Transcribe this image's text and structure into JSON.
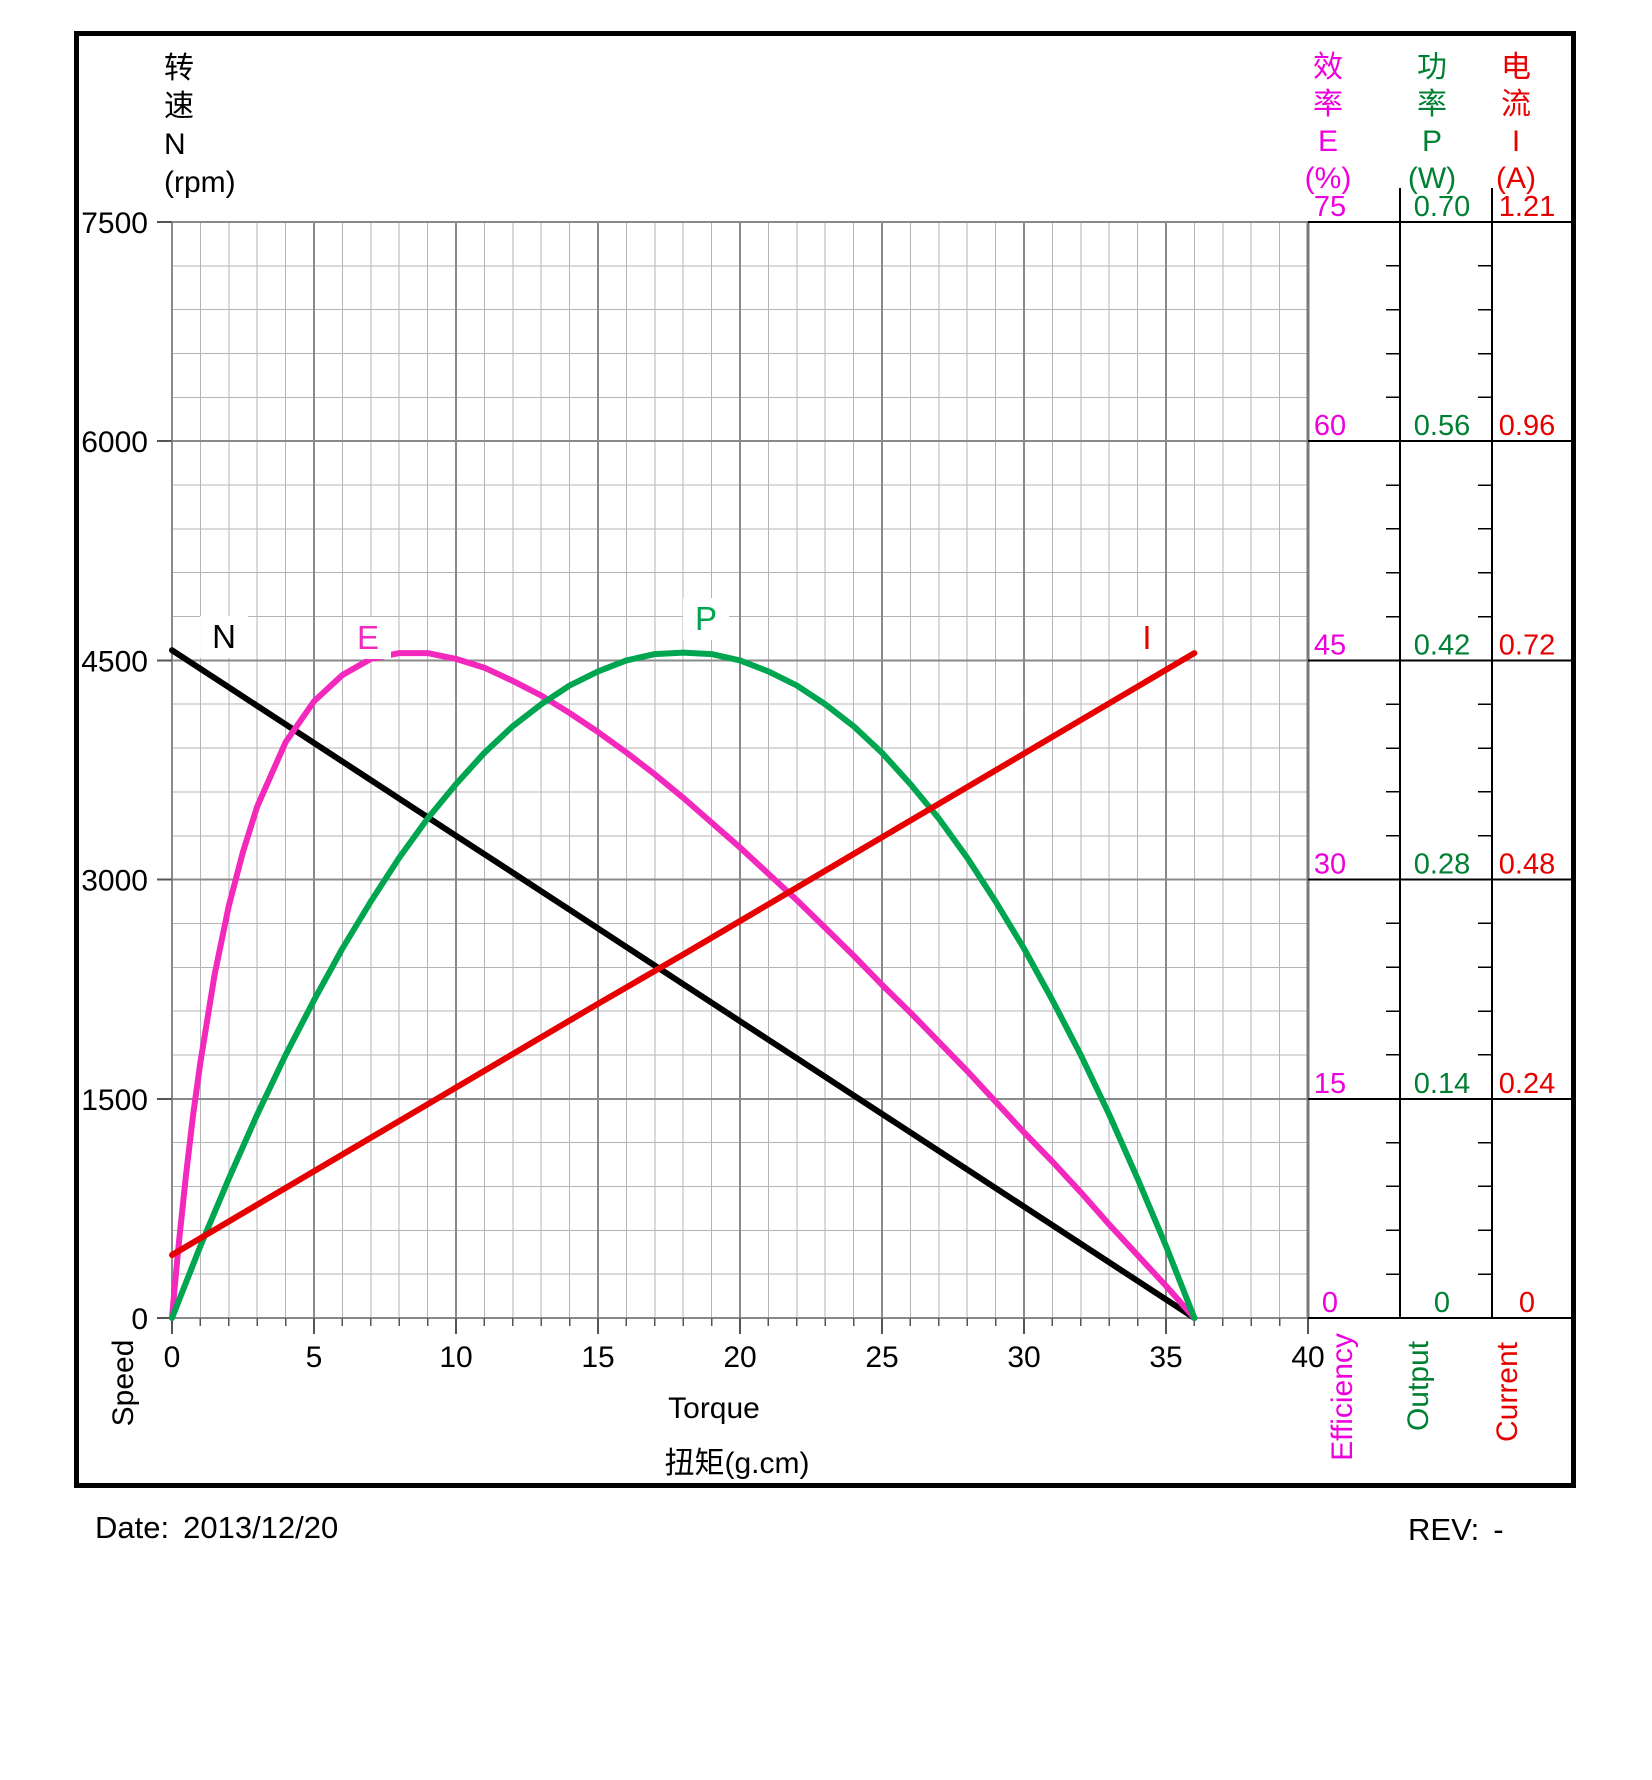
{
  "header_left": {
    "lines": [
      "转",
      "速",
      "N",
      "(rpm)"
    ]
  },
  "y_axis": {
    "tick_labels": [
      "7500",
      "6000",
      "4500",
      "3000",
      "1500",
      "0"
    ],
    "rotated_label": "Speed"
  },
  "x_axis": {
    "tick_labels": [
      "0",
      "5",
      "10",
      "15",
      "20",
      "25",
      "30",
      "35",
      "40"
    ],
    "label_en": "Torque",
    "label_zh": "扭矩(g.cm)"
  },
  "columns": {
    "efficiency": {
      "header": [
        "效",
        "率",
        "E",
        "(%)"
      ],
      "values": [
        "75",
        "60",
        "45",
        "30",
        "15",
        "0"
      ],
      "rotated_label": "Efficiency",
      "color": "#EE00DD"
    },
    "output": {
      "header": [
        "功",
        "率",
        "P",
        "(W)"
      ],
      "values": [
        "0.70",
        "0.56",
        "0.42",
        "0.28",
        "0.14",
        "0"
      ],
      "rotated_label": "Output",
      "color": "#008033"
    },
    "current": {
      "header": [
        "电",
        "流",
        "I",
        "(A)"
      ],
      "values": [
        "1.21",
        "0.96",
        "0.72",
        "0.48",
        "0.24",
        "0"
      ],
      "rotated_label": "Current",
      "color": "#E60000"
    }
  },
  "curve_labels": {
    "n": "N",
    "e": "E",
    "p": "P",
    "i": "I"
  },
  "footer": {
    "date_label": "Date:",
    "date_value": "2013/12/20",
    "rev_label": "REV:",
    "rev_value": "-"
  },
  "chart_data": {
    "type": "line",
    "title": "Motor performance curves",
    "xlabel": "Torque 扭矩(g.cm)",
    "x_range": [
      0,
      40
    ],
    "x_major_ticks": [
      0,
      5,
      10,
      15,
      20,
      25,
      30,
      35,
      40
    ],
    "left_axis": {
      "label": "转速 N (rpm) Speed",
      "range": [
        0,
        7500
      ],
      "ticks": [
        0,
        1500,
        3000,
        4500,
        6000,
        7500
      ]
    },
    "right_axes": [
      {
        "label": "效率 E (%) Efficiency",
        "ticks": [
          0,
          15,
          30,
          45,
          60,
          75
        ]
      },
      {
        "label": "功率 P (W) Output",
        "ticks": [
          0,
          0.14,
          0.28,
          0.42,
          0.56,
          0.7
        ]
      },
      {
        "label": "电流 I (A) Current",
        "ticks": [
          0,
          0.24,
          0.48,
          0.72,
          0.96,
          1.21
        ]
      }
    ],
    "grid": {
      "x_minor_per_major": 5,
      "y_minor_per_major": 5
    },
    "series": [
      {
        "name": "N",
        "unit": "rpm",
        "per_division": 1500,
        "color": "#000000",
        "points": [
          [
            0,
            4570
          ],
          [
            2,
            4316
          ],
          [
            4,
            4062
          ],
          [
            6,
            3808
          ],
          [
            8,
            3554
          ],
          [
            10,
            3300
          ],
          [
            12,
            3047
          ],
          [
            14,
            2793
          ],
          [
            16,
            2539
          ],
          [
            18,
            2285
          ],
          [
            20,
            2031
          ],
          [
            22,
            1777
          ],
          [
            24,
            1523
          ],
          [
            26,
            1270
          ],
          [
            28,
            1016
          ],
          [
            30,
            762
          ],
          [
            32,
            508
          ],
          [
            34,
            254
          ],
          [
            36,
            0
          ]
        ]
      },
      {
        "name": "E",
        "unit": "%",
        "per_division": 15,
        "color": "#F328BC",
        "points": [
          [
            0,
            0
          ],
          [
            0.1,
            2.2
          ],
          [
            0.25,
            5.3
          ],
          [
            0.5,
            9.9
          ],
          [
            0.75,
            14.0
          ],
          [
            1,
            17.5
          ],
          [
            1.5,
            23.5
          ],
          [
            2,
            28.2
          ],
          [
            2.5,
            31.9
          ],
          [
            3,
            35.0
          ],
          [
            4,
            39.4
          ],
          [
            5,
            42.2
          ],
          [
            6,
            44.0
          ],
          [
            7,
            45.1
          ],
          [
            8,
            45.5
          ],
          [
            9,
            45.5
          ],
          [
            10,
            45.1
          ],
          [
            11,
            44.5
          ],
          [
            12,
            43.6
          ],
          [
            13,
            42.6
          ],
          [
            14,
            41.4
          ],
          [
            15,
            40.1
          ],
          [
            16,
            38.7
          ],
          [
            17,
            37.2
          ],
          [
            18,
            35.6
          ],
          [
            19,
            33.9
          ],
          [
            20,
            32.2
          ],
          [
            21,
            30.4
          ],
          [
            22,
            28.6
          ],
          [
            23,
            26.7
          ],
          [
            24,
            24.8
          ],
          [
            25,
            22.8
          ],
          [
            26,
            20.9
          ],
          [
            27,
            18.9
          ],
          [
            28,
            16.9
          ],
          [
            29,
            14.8
          ],
          [
            30,
            12.7
          ],
          [
            31,
            10.7
          ],
          [
            32,
            8.6
          ],
          [
            33,
            6.4
          ],
          [
            34,
            4.3
          ],
          [
            35,
            2.2
          ],
          [
            36,
            0
          ]
        ]
      },
      {
        "name": "P",
        "unit": "W",
        "per_division": 0.14,
        "color": "#00A550",
        "points": [
          [
            0,
            0
          ],
          [
            1,
            0.046
          ],
          [
            2,
            0.089
          ],
          [
            3,
            0.13
          ],
          [
            4,
            0.168
          ],
          [
            5,
            0.203
          ],
          [
            6,
            0.236
          ],
          [
            7,
            0.266
          ],
          [
            8,
            0.294
          ],
          [
            9,
            0.319
          ],
          [
            10,
            0.341
          ],
          [
            11,
            0.361
          ],
          [
            12,
            0.378
          ],
          [
            13,
            0.392
          ],
          [
            14,
            0.404
          ],
          [
            15,
            0.413
          ],
          [
            16,
            0.42
          ],
          [
            17,
            0.424
          ],
          [
            18,
            0.425
          ],
          [
            19,
            0.424
          ],
          [
            20,
            0.42
          ],
          [
            21,
            0.413
          ],
          [
            22,
            0.404
          ],
          [
            23,
            0.392
          ],
          [
            24,
            0.378
          ],
          [
            25,
            0.361
          ],
          [
            26,
            0.341
          ],
          [
            27,
            0.319
          ],
          [
            28,
            0.294
          ],
          [
            29,
            0.266
          ],
          [
            30,
            0.236
          ],
          [
            31,
            0.203
          ],
          [
            32,
            0.168
          ],
          [
            33,
            0.13
          ],
          [
            34,
            0.089
          ],
          [
            35,
            0.046
          ],
          [
            36,
            0
          ]
        ]
      },
      {
        "name": "I",
        "unit": "A",
        "per_division": 0.24,
        "color": "#E60000",
        "points": [
          [
            0,
            0.069
          ],
          [
            3,
            0.124
          ],
          [
            6,
            0.179
          ],
          [
            9,
            0.234
          ],
          [
            12,
            0.289
          ],
          [
            15,
            0.344
          ],
          [
            18,
            0.398
          ],
          [
            21,
            0.453
          ],
          [
            24,
            0.508
          ],
          [
            27,
            0.563
          ],
          [
            30,
            0.618
          ],
          [
            33,
            0.673
          ],
          [
            36,
            0.728
          ]
        ]
      }
    ]
  }
}
